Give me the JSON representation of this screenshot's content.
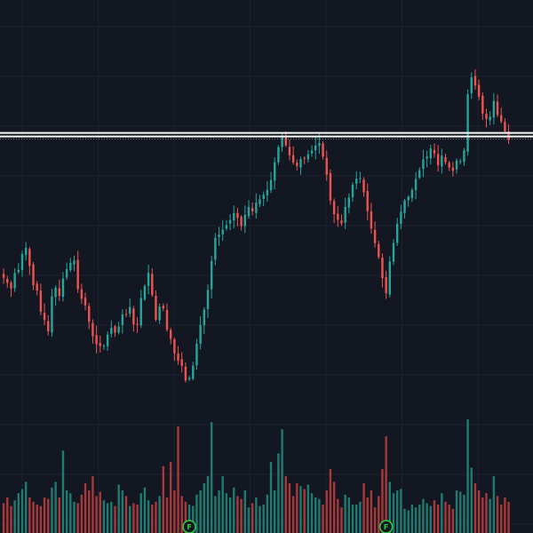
{
  "colors": {
    "background": "#131722",
    "grid": "#1e2230",
    "up": "#26a69a",
    "down": "#ef5350",
    "up_volume": "#1f7a70",
    "down_volume": "#a8383a",
    "level_line": "#ffffff",
    "marker": "#2ecc40"
  },
  "chart_data": {
    "type": "candlestick",
    "grid": true,
    "price_levels": [
      {
        "name": "",
        "value": 201.2
      },
      {
        "name": "",
        "value": 199.9
      }
    ],
    "closes": [
      148.0,
      146.2,
      144.1,
      149.8,
      150.9,
      156.8,
      159.0,
      152.4,
      145.3,
      143.3,
      135.6,
      132.5,
      128.4,
      141.2,
      144.5,
      141.4,
      147.8,
      151.2,
      153.5,
      154.4,
      143.9,
      140.3,
      137.9,
      131.9,
      126.6,
      123.6,
      123.0,
      123.1,
      127.2,
      129.7,
      127.9,
      130.1,
      134.6,
      134.5,
      137.3,
      130.9,
      130.9,
      140.6,
      145.0,
      149.9,
      141.7,
      132.6,
      137.4,
      136.8,
      129.0,
      125.6,
      120.3,
      117.6,
      115.7,
      110.3,
      111.3,
      115.8,
      123.8,
      130.7,
      136.3,
      143.6,
      154.2,
      162.7,
      163.9,
      165.7,
      167.4,
      169.2,
      171.8,
      170.1,
      167.0,
      171.1,
      174.0,
      172.4,
      175.6,
      176.8,
      178.5,
      180.3,
      183.9,
      190.4,
      196.0,
      200.2,
      196.6,
      193.0,
      190.4,
      189.1,
      191.6,
      191.8,
      193.4,
      194.7,
      196.6,
      197.5,
      192.5,
      185.9,
      176.4,
      171.4,
      169.3,
      168.0,
      174.0,
      177.5,
      182.2,
      184.4,
      184.6,
      179.4,
      172.5,
      166.1,
      160.7,
      155.6,
      147.9,
      142.4,
      154.0,
      160.8,
      167.8,
      172.3,
      176.5,
      177.8,
      180.3,
      184.3,
      187.6,
      191.5,
      192.5,
      195.5,
      193.7,
      189.3,
      192.9,
      190.5,
      188.5,
      187.3,
      191.1,
      190.8,
      194.8,
      215.4,
      221.6,
      218.6,
      214.5,
      208.3,
      206.3,
      207.2,
      213.0,
      207.8,
      205.4,
      201.8,
      198.6
    ],
    "volumes": [
      0.21,
      0.25,
      0.19,
      0.23,
      0.28,
      0.31,
      0.36,
      0.25,
      0.22,
      0.2,
      0.19,
      0.25,
      0.24,
      0.32,
      0.36,
      0.25,
      0.58,
      0.3,
      0.28,
      0.22,
      0.21,
      0.27,
      0.35,
      0.3,
      0.4,
      0.26,
      0.29,
      0.23,
      0.21,
      0.22,
      0.19,
      0.34,
      0.3,
      0.26,
      0.19,
      0.21,
      0.2,
      0.28,
      0.32,
      0.23,
      0.2,
      0.22,
      0.26,
      0.47,
      0.25,
      0.5,
      0.3,
      0.75,
      0.26,
      0.22,
      0.2,
      0.19,
      0.27,
      0.3,
      0.35,
      0.4,
      0.78,
      0.26,
      0.3,
      0.4,
      0.28,
      0.25,
      0.32,
      0.26,
      0.24,
      0.3,
      0.18,
      0.21,
      0.25,
      0.19,
      0.2,
      0.27,
      0.5,
      0.3,
      0.56,
      0.73,
      0.4,
      0.35,
      0.26,
      0.35,
      0.33,
      0.31,
      0.34,
      0.28,
      0.25,
      0.24,
      0.2,
      0.3,
      0.45,
      0.36,
      0.24,
      0.18,
      0.27,
      0.25,
      0.2,
      0.2,
      0.22,
      0.35,
      0.25,
      0.3,
      0.18,
      0.26,
      0.45,
      0.68,
      0.36,
      0.28,
      0.3,
      0.31,
      0.17,
      0.16,
      0.2,
      0.18,
      0.2,
      0.24,
      0.21,
      0.19,
      0.23,
      0.2,
      0.28,
      0.22,
      0.2,
      0.17,
      0.3,
      0.29,
      0.27,
      0.8,
      0.46,
      0.35,
      0.3,
      0.25,
      0.28,
      0.24,
      0.4,
      0.26,
      0.2,
      0.25,
      0.22
    ],
    "event_markers": [
      {
        "label": "F",
        "index": 50
      },
      {
        "label": "F",
        "index": 103
      }
    ]
  }
}
